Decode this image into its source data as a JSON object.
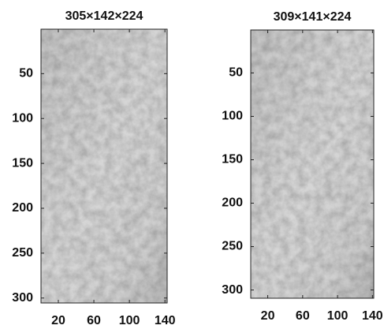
{
  "chart_data": [
    {
      "type": "image",
      "title": "305×142×224",
      "xlim": [
        0.5,
        142.5
      ],
      "ylim": [
        0.5,
        305.5
      ],
      "xticks": [
        20,
        60,
        100,
        140
      ],
      "yticks": [
        50,
        100,
        150,
        200,
        250,
        300
      ],
      "y_reversed": true
    },
    {
      "type": "image",
      "title": "309×141×224",
      "xlim": [
        0.5,
        141.5
      ],
      "ylim": [
        0.5,
        309.5
      ],
      "xticks": [
        20,
        60,
        100,
        140
      ],
      "yticks": [
        50,
        100,
        150,
        200,
        250,
        300
      ],
      "y_reversed": true
    }
  ]
}
